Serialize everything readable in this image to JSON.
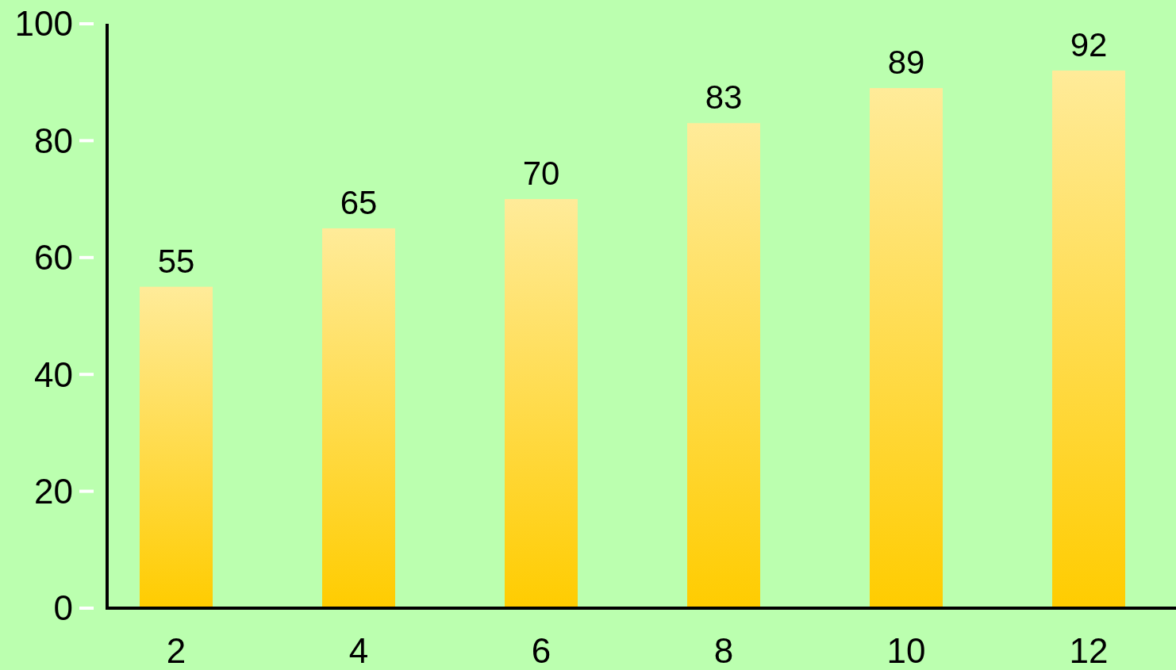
{
  "chart_data": {
    "type": "bar",
    "categories": [
      "2",
      "4",
      "6",
      "8",
      "10",
      "12"
    ],
    "values": [
      55,
      65,
      70,
      83,
      89,
      92
    ],
    "color": "#ffcc00",
    "ylim": [
      0,
      100
    ],
    "yticks": [
      0,
      20,
      40,
      60,
      80,
      100
    ],
    "data_labels": true
  }
}
